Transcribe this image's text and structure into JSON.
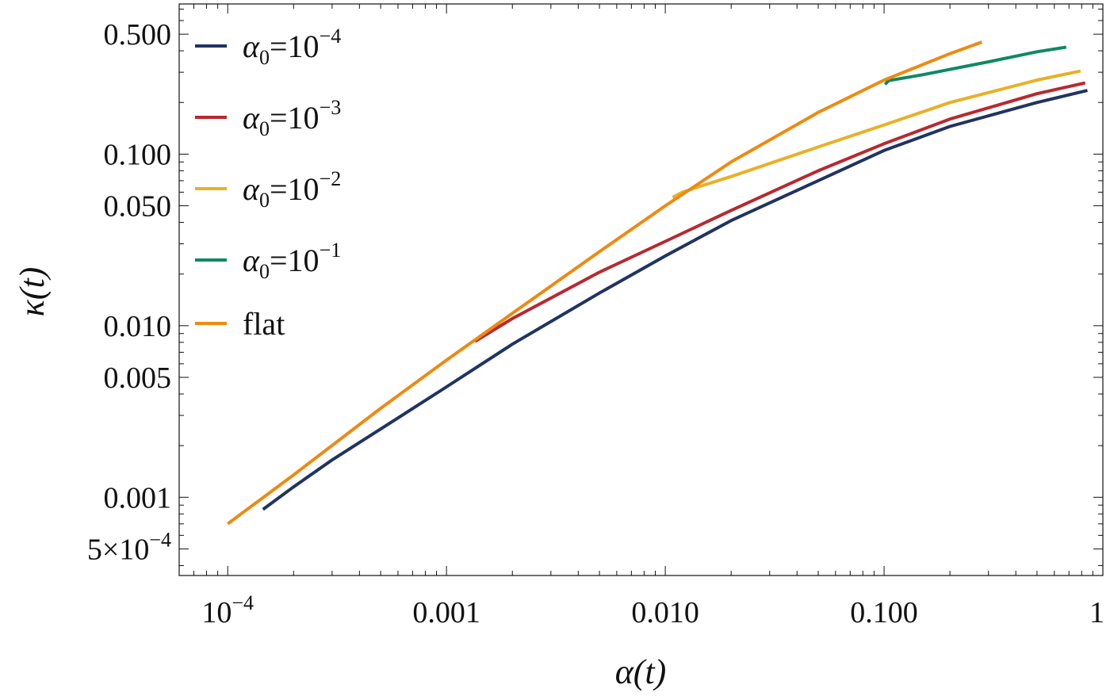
{
  "chart_data": {
    "type": "line",
    "title": "",
    "xlabel": "α(t)",
    "ylabel": "κ(t)",
    "xscale": "log",
    "yscale": "log",
    "xlim": [
      6e-05,
      1.0
    ],
    "ylim": [
      0.00035,
      0.75
    ],
    "grid": false,
    "legend_position": "top-left",
    "x_ticks": [
      {
        "value": 0.0001,
        "label_base": "10",
        "label_exp": "−4"
      },
      {
        "value": 0.001,
        "label": "0.001"
      },
      {
        "value": 0.01,
        "label": "0.010"
      },
      {
        "value": 0.1,
        "label": "0.100"
      },
      {
        "value": 1,
        "label": "1"
      }
    ],
    "y_ticks": [
      {
        "value": 0.0005,
        "label_base": "5×10",
        "label_exp": "−4"
      },
      {
        "value": 0.001,
        "label": "0.001"
      },
      {
        "value": 0.005,
        "label": "0.005"
      },
      {
        "value": 0.01,
        "label": "0.010"
      },
      {
        "value": 0.05,
        "label": "0.050"
      },
      {
        "value": 0.1,
        "label": "0.100"
      },
      {
        "value": 0.5,
        "label": "0.500"
      }
    ],
    "series": [
      {
        "name": "α0=10^-4",
        "legend_base": "α",
        "legend_sub": "0",
        "legend_mid": "=10",
        "legend_exp": "−4",
        "color": "#1f3461",
        "x": [
          0.000145,
          0.0002,
          0.0003,
          0.0005,
          0.001,
          0.002,
          0.005,
          0.01,
          0.02,
          0.05,
          0.1,
          0.2,
          0.5,
          0.85
        ],
        "y": [
          0.00085,
          0.00115,
          0.00165,
          0.0025,
          0.0044,
          0.0078,
          0.0155,
          0.0255,
          0.041,
          0.07,
          0.105,
          0.145,
          0.2,
          0.235
        ]
      },
      {
        "name": "α0=10^-3",
        "legend_base": "α",
        "legend_sub": "0",
        "legend_mid": "=10",
        "legend_exp": "−3",
        "color": "#b9282f",
        "x": [
          0.00135,
          0.002,
          0.005,
          0.01,
          0.02,
          0.05,
          0.1,
          0.2,
          0.5,
          0.83
        ],
        "y": [
          0.0081,
          0.011,
          0.0205,
          0.031,
          0.047,
          0.08,
          0.115,
          0.16,
          0.225,
          0.26
        ]
      },
      {
        "name": "α0=10^-2",
        "legend_base": "α",
        "legend_sub": "0",
        "legend_mid": "=10",
        "legend_exp": "−2",
        "color": "#e9b027",
        "x": [
          0.0108,
          0.012,
          0.015,
          0.02,
          0.05,
          0.1,
          0.2,
          0.5,
          0.79
        ],
        "y": [
          0.056,
          0.06,
          0.066,
          0.074,
          0.11,
          0.148,
          0.2,
          0.27,
          0.305
        ]
      },
      {
        "name": "α0=10^-1",
        "legend_base": "α",
        "legend_sub": "0",
        "legend_mid": "=10",
        "legend_exp": "−1",
        "color": "#0d8a63",
        "x": [
          0.101,
          0.105,
          0.15,
          0.3,
          0.5,
          0.68
        ],
        "y": [
          0.255,
          0.268,
          0.29,
          0.345,
          0.395,
          0.42
        ]
      },
      {
        "name": "flat",
        "legend_text": "flat",
        "color": "#ee8a10",
        "x": [
          0.0001,
          0.0002,
          0.0005,
          0.001,
          0.002,
          0.005,
          0.01,
          0.02,
          0.05,
          0.1,
          0.2,
          0.28
        ],
        "y": [
          0.0007,
          0.00135,
          0.0033,
          0.0063,
          0.0118,
          0.027,
          0.05,
          0.09,
          0.175,
          0.27,
          0.385,
          0.45
        ]
      }
    ]
  }
}
